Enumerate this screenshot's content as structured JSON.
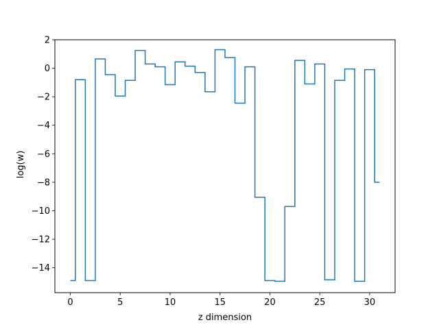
{
  "chart_data": {
    "type": "line",
    "drawstyle": "steps-post",
    "title": "",
    "xlabel": "z dimension",
    "ylabel": "log(w)",
    "xlim": [
      -1.55,
      32.55
    ],
    "ylim": [
      -15.75,
      2.0
    ],
    "xticks": [
      0,
      5,
      10,
      15,
      20,
      25,
      30
    ],
    "yticks": [
      -14,
      -12,
      -10,
      -8,
      -6,
      -4,
      -2,
      0,
      2
    ],
    "grid": false,
    "legend": "none",
    "series": [
      {
        "color": "#1f77b4",
        "x": [
          0,
          0.5,
          1.5,
          2.5,
          3.5,
          4.5,
          5.5,
          6.5,
          7.5,
          8.5,
          9.5,
          10.5,
          11.5,
          12.5,
          13.5,
          14.5,
          15.5,
          16.5,
          17.5,
          18.5,
          19.5,
          20.5,
          21.5,
          22.5,
          23.5,
          24.5,
          25.5,
          26.5,
          27.5,
          28.5,
          29.5,
          30.5,
          31.0
        ],
        "values": [
          -14.9,
          -0.8,
          -14.9,
          0.65,
          -0.45,
          -1.95,
          -0.85,
          1.25,
          0.3,
          0.1,
          -1.15,
          0.45,
          0.15,
          -0.3,
          -1.65,
          1.3,
          0.75,
          -2.45,
          0.1,
          -9.05,
          -14.9,
          -14.95,
          -9.7,
          0.55,
          -1.1,
          0.3,
          -14.85,
          -0.85,
          -0.05,
          -14.95,
          -0.1,
          -8.0,
          -8.0
        ]
      }
    ]
  }
}
